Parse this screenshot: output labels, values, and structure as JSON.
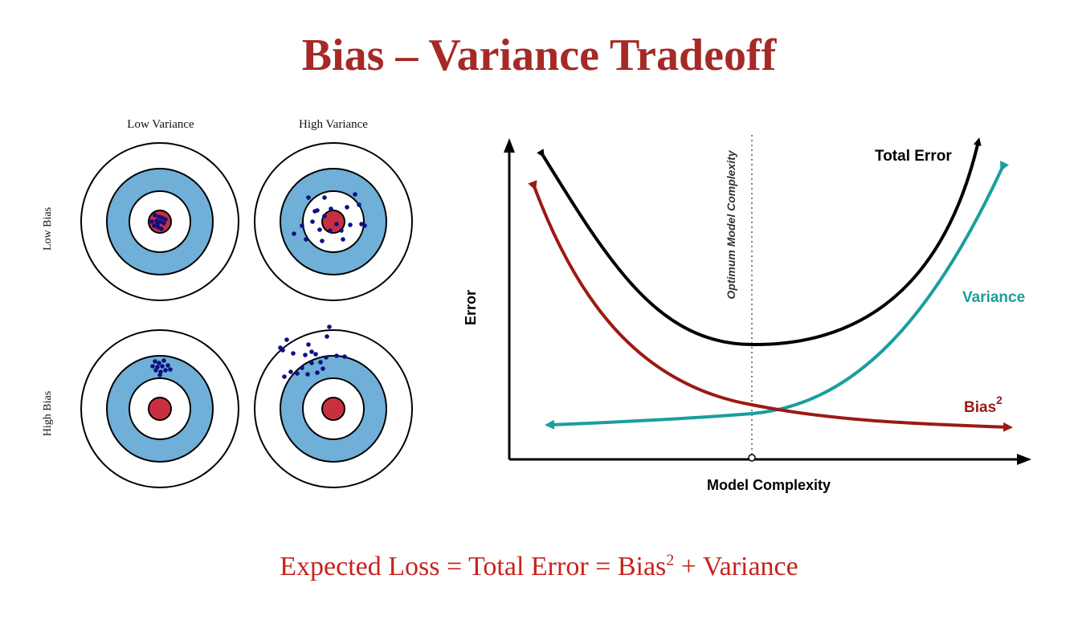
{
  "title": "Bias – Variance Tradeoff",
  "targets": {
    "column_labels": [
      "Low Variance",
      "High Variance"
    ],
    "row_labels": [
      "Low Bias",
      "High Bias"
    ],
    "colors": {
      "ring_fill": "#ffffff",
      "band_fill": "#6fafd8",
      "bullseye": "#c8303f",
      "dots": "#101083",
      "stroke": "#000000"
    }
  },
  "chart": {
    "axis_x_label": "Model Complexity",
    "axis_y_label": "Error",
    "optimum_label": "Optimum Model Complexity",
    "series": [
      {
        "name": "Total Error",
        "color": "#000000"
      },
      {
        "name": "Variance",
        "color": "#1a9e9e"
      },
      {
        "name": "Bias",
        "color": "#9c1a14",
        "superscript": "2"
      }
    ]
  },
  "formula": {
    "lhs": "Expected Loss = Total Error = Bias",
    "superscript": "2",
    "rhs": " + Variance"
  }
}
